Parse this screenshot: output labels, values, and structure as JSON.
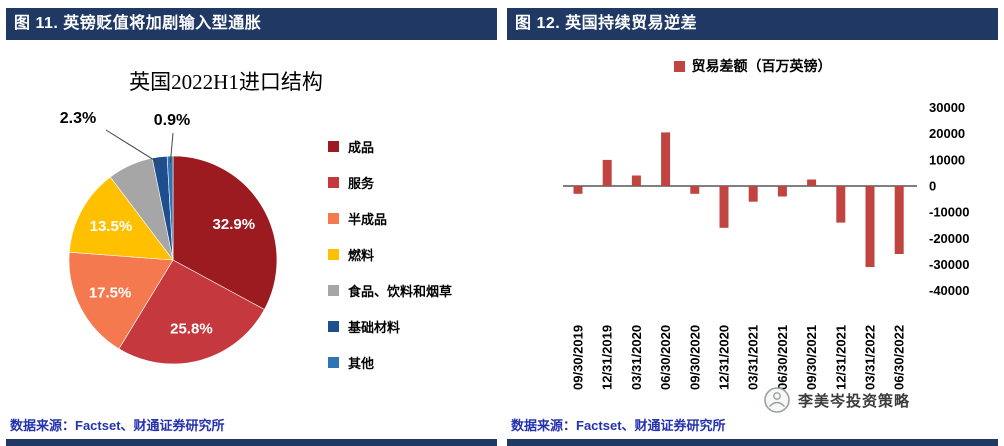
{
  "left_panel": {
    "header": "图 11. 英镑贬值将加剧输入型通胀",
    "title": "英国2022H1进口结构",
    "source": "数据来源：Factset、财通证券研究所"
  },
  "right_panel": {
    "header": "图 12. 英国持续贸易逆差",
    "legend": "贸易差额（百万英镑）",
    "source": "数据来源：Factset、财通证券研究所"
  },
  "logo": {
    "text": "李美岑投资策略"
  },
  "colors": {
    "header_bg": "#1F3864",
    "footer_bar": "#1F3864",
    "source_text": "#2532AE"
  },
  "chart_data": [
    {
      "type": "pie",
      "title": "英国2022H1进口结构",
      "labels": [
        "成品",
        "服务",
        "半成品",
        "燃料",
        "食品、饮料和烟草",
        "基础材料",
        "其他"
      ],
      "values": [
        32.9,
        25.8,
        17.5,
        13.5,
        7.1,
        2.3,
        0.9
      ],
      "data_labels": [
        "32.9%",
        "25.8%",
        "17.5%",
        "13.5%",
        "",
        "2.3%",
        "0.9%"
      ],
      "colors": [
        "#9C1B20",
        "#C5393E",
        "#F4794E",
        "#FFC000",
        "#A6A6A6",
        "#1F4E8F",
        "#2E75B6"
      ],
      "start_angle_deg": 0,
      "legend_position": "right"
    },
    {
      "type": "bar",
      "title": "贸易差额（百万英镑）",
      "categories": [
        "09/30/2019",
        "12/31/2019",
        "03/31/2020",
        "06/30/2020",
        "09/30/2020",
        "12/31/2020",
        "03/31/2021",
        "06/30/2021",
        "09/30/2021",
        "12/31/2021",
        "03/31/2022",
        "06/30/2022"
      ],
      "values": [
        -3000,
        10000,
        4000,
        20500,
        -3000,
        -16000,
        -6000,
        -4000,
        2500,
        -14000,
        -31000,
        -26000
      ],
      "bar_color": "#C0443F",
      "ylim": [
        -40000,
        30000
      ],
      "yticks": [
        30000,
        20000,
        10000,
        0,
        -10000,
        -20000,
        -30000,
        -40000
      ],
      "y_axis_position": "right",
      "xlabel_rotation": -90,
      "grid": false
    }
  ]
}
